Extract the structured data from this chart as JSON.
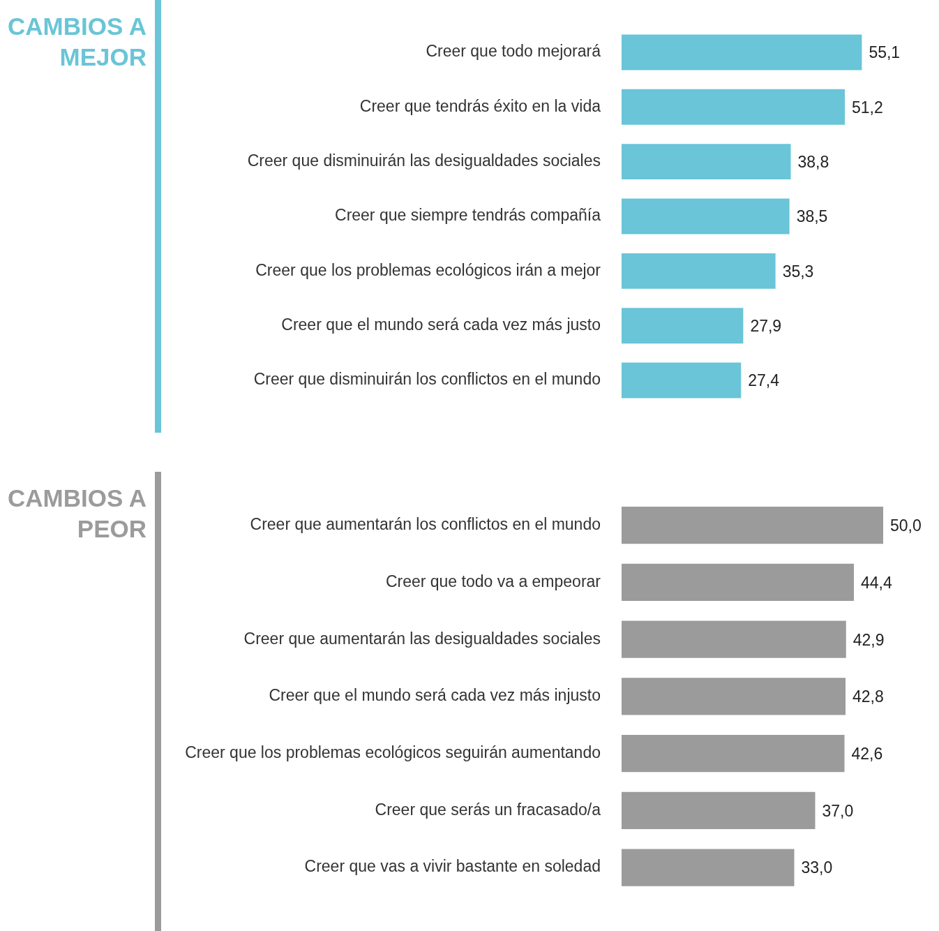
{
  "chart_data": [
    {
      "type": "bar",
      "orientation": "horizontal",
      "title": "CAMBIOS A MEJOR",
      "color": "#69c5d7",
      "tick_labels": "y",
      "legend": false,
      "categories": [
        "Creer que todo mejorará",
        "Creer que tendrás éxito en la vida",
        "Creer que disminuirán las desigualdades sociales",
        "Creer que siempre tendrás compañía",
        "Creer que los problemas ecológicos irán a mejor",
        "Creer que el mundo será cada vez más justo",
        "Creer que disminuirán los conflictos en el mundo"
      ],
      "values": [
        55.1,
        51.2,
        38.8,
        38.5,
        35.3,
        27.9,
        27.4
      ],
      "value_labels": [
        "55,1",
        "51,2",
        "38,8",
        "38,5",
        "35,3",
        "27,9",
        "27,4"
      ]
    },
    {
      "type": "bar",
      "orientation": "horizontal",
      "title": "CAMBIOS A PEOR",
      "color": "#9b9b9b",
      "tick_labels": "y",
      "legend": false,
      "categories": [
        "Creer que aumentarán los conflictos en el mundo",
        "Creer que todo va a empeorar",
        "Creer que aumentarán las desigualdades sociales",
        "Creer que el mundo será cada vez más injusto",
        "Creer que los problemas ecológicos seguirán aumentando",
        "Creer que serás un fracasado/a",
        "Creer que vas a vivir bastante en soledad"
      ],
      "values": [
        50.0,
        44.4,
        42.9,
        42.8,
        42.6,
        37.0,
        33.0
      ],
      "value_labels": [
        "50,0",
        "44,4",
        "42,9",
        "42,8",
        "42,6",
        "37,0",
        "33,0"
      ]
    }
  ]
}
